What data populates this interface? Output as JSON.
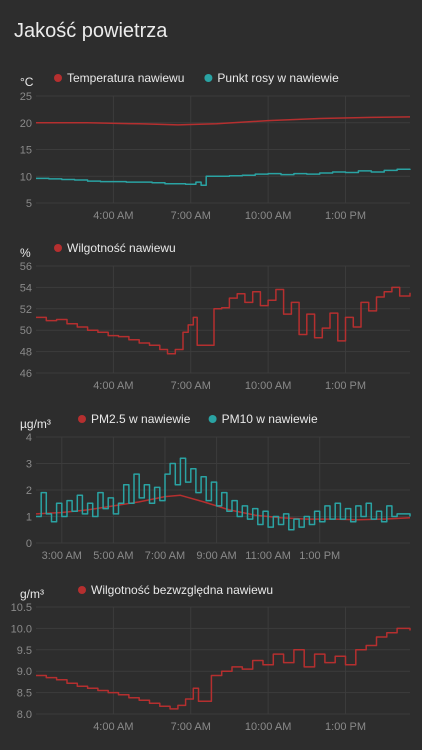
{
  "card": {
    "title": "Jakość powietrza"
  },
  "colors": {
    "background": "#2d2d2d",
    "grid": "#3c3c3c",
    "tick_text": "#8a8a8a",
    "legend_text": "#e8e8e8",
    "red": "#b52f2f",
    "teal": "#2aa3a3"
  },
  "chart_data": [
    {
      "type": "line",
      "unit": "°C",
      "xlabel": "",
      "ylabel": "°C",
      "ylim": [
        5,
        25
      ],
      "yticks": [
        5,
        10,
        15,
        20,
        25
      ],
      "xlim": [
        0,
        14.5
      ],
      "xticks": [
        {
          "x": 3,
          "label": "4:00 AM"
        },
        {
          "x": 6,
          "label": "7:00 AM"
        },
        {
          "x": 9,
          "label": "10:00 AM"
        },
        {
          "x": 12,
          "label": "1:00 PM"
        }
      ],
      "grid": true,
      "legend_position": "top",
      "series": [
        {
          "name": "Temperatura nawiewu",
          "color": "red",
          "step": false,
          "points": [
            [
              0,
              20.0
            ],
            [
              2,
              20.0
            ],
            [
              4,
              19.8
            ],
            [
              5.5,
              19.6
            ],
            [
              7,
              19.8
            ],
            [
              9,
              20.4
            ],
            [
              11,
              20.8
            ],
            [
              13,
              21.0
            ],
            [
              14.5,
              21.1
            ]
          ]
        },
        {
          "name": "Punkt rosy w nawiewie",
          "color": "teal",
          "step": true,
          "points": [
            [
              0,
              9.6
            ],
            [
              0.5,
              9.5
            ],
            [
              1,
              9.4
            ],
            [
              1.5,
              9.3
            ],
            [
              2,
              9.1
            ],
            [
              2.5,
              9.0
            ],
            [
              3,
              9.0
            ],
            [
              3.5,
              8.9
            ],
            [
              4,
              8.9
            ],
            [
              4.5,
              8.8
            ],
            [
              5,
              8.6
            ],
            [
              5.5,
              8.6
            ],
            [
              5.8,
              8.5
            ],
            [
              6.2,
              8.9
            ],
            [
              6.4,
              8.3
            ],
            [
              6.6,
              10.0
            ],
            [
              7,
              10.0
            ],
            [
              7.5,
              10.1
            ],
            [
              8,
              10.2
            ],
            [
              8.5,
              10.4
            ],
            [
              9,
              10.5
            ],
            [
              9.5,
              10.3
            ],
            [
              10,
              10.5
            ],
            [
              10.5,
              10.4
            ],
            [
              11,
              10.6
            ],
            [
              11.5,
              10.8
            ],
            [
              12,
              10.7
            ],
            [
              12.5,
              11.0
            ],
            [
              13,
              10.8
            ],
            [
              13.5,
              11.1
            ],
            [
              14,
              11.3
            ],
            [
              14.5,
              11.4
            ]
          ]
        }
      ]
    },
    {
      "type": "line",
      "unit": "%",
      "xlabel": "",
      "ylabel": "%",
      "ylim": [
        46,
        56
      ],
      "yticks": [
        46,
        48,
        50,
        52,
        54,
        56
      ],
      "xlim": [
        0,
        14.5
      ],
      "xticks": [
        {
          "x": 3,
          "label": "4:00 AM"
        },
        {
          "x": 6,
          "label": "7:00 AM"
        },
        {
          "x": 9,
          "label": "10:00 AM"
        },
        {
          "x": 12,
          "label": "1:00 PM"
        }
      ],
      "grid": true,
      "legend_position": "top",
      "series": [
        {
          "name": "Wilgotność nawiewu",
          "color": "red",
          "step": true,
          "points": [
            [
              0,
              51.2
            ],
            [
              0.4,
              50.9
            ],
            [
              0.8,
              51.0
            ],
            [
              1.2,
              50.6
            ],
            [
              1.6,
              50.3
            ],
            [
              2,
              50.0
            ],
            [
              2.4,
              49.8
            ],
            [
              2.8,
              49.5
            ],
            [
              3.2,
              49.4
            ],
            [
              3.6,
              49.1
            ],
            [
              4,
              48.8
            ],
            [
              4.4,
              48.6
            ],
            [
              4.8,
              48.2
            ],
            [
              5.1,
              47.8
            ],
            [
              5.4,
              48.2
            ],
            [
              5.7,
              49.8
            ],
            [
              5.9,
              50.5
            ],
            [
              6.1,
              51.2
            ],
            [
              6.25,
              48.6
            ],
            [
              6.8,
              48.6
            ],
            [
              6.9,
              52.0
            ],
            [
              7.2,
              52.1
            ],
            [
              7.5,
              53.0
            ],
            [
              7.8,
              53.4
            ],
            [
              8.1,
              52.6
            ],
            [
              8.4,
              53.6
            ],
            [
              8.7,
              52.3
            ],
            [
              9.0,
              52.8
            ],
            [
              9.3,
              53.8
            ],
            [
              9.6,
              51.5
            ],
            [
              9.9,
              52.6
            ],
            [
              10.2,
              49.6
            ],
            [
              10.5,
              51.5
            ],
            [
              10.8,
              49.3
            ],
            [
              11.1,
              50.2
            ],
            [
              11.4,
              51.6
            ],
            [
              11.7,
              49.0
            ],
            [
              12.0,
              51.2
            ],
            [
              12.3,
              50.3
            ],
            [
              12.6,
              52.6
            ],
            [
              12.9,
              51.8
            ],
            [
              13.2,
              53.1
            ],
            [
              13.5,
              53.6
            ],
            [
              13.8,
              54.0
            ],
            [
              14.1,
              53.2
            ],
            [
              14.5,
              53.5
            ]
          ]
        }
      ]
    },
    {
      "type": "line",
      "unit": "µg/m³",
      "xlabel": "",
      "ylabel": "µg/m³",
      "ylim": [
        0,
        4
      ],
      "yticks": [
        0,
        1,
        2,
        3,
        4
      ],
      "xlim": [
        0,
        14.5
      ],
      "xticks": [
        {
          "x": 1,
          "label": "3:00 AM"
        },
        {
          "x": 3,
          "label": "5:00 AM"
        },
        {
          "x": 5,
          "label": "7:00 AM"
        },
        {
          "x": 7,
          "label": "9:00 AM"
        },
        {
          "x": 9,
          "label": "11:00 AM"
        },
        {
          "x": 11,
          "label": "1:00 PM"
        }
      ],
      "grid": true,
      "legend_position": "top",
      "series": [
        {
          "name": "PM2.5 w nawiewie",
          "color": "red",
          "step": false,
          "points": [
            [
              0,
              1.1
            ],
            [
              1,
              1.15
            ],
            [
              2,
              1.25
            ],
            [
              3,
              1.4
            ],
            [
              4,
              1.55
            ],
            [
              5,
              1.75
            ],
            [
              5.6,
              1.8
            ],
            [
              6.5,
              1.55
            ],
            [
              7.5,
              1.25
            ],
            [
              8.5,
              1.05
            ],
            [
              9.5,
              0.95
            ],
            [
              10.5,
              0.9
            ],
            [
              11.5,
              0.9
            ],
            [
              12.5,
              0.88
            ],
            [
              13.5,
              0.9
            ],
            [
              14.5,
              0.95
            ]
          ]
        },
        {
          "name": "PM10 w nawiewie",
          "color": "teal",
          "step": true,
          "points": [
            [
              0,
              1.0
            ],
            [
              0.2,
              1.9
            ],
            [
              0.4,
              1.1
            ],
            [
              0.6,
              0.8
            ],
            [
              0.8,
              1.5
            ],
            [
              1.0,
              1.0
            ],
            [
              1.2,
              1.6
            ],
            [
              1.4,
              1.2
            ],
            [
              1.6,
              1.8
            ],
            [
              1.8,
              1.1
            ],
            [
              2.0,
              1.5
            ],
            [
              2.2,
              1.0
            ],
            [
              2.4,
              1.9
            ],
            [
              2.6,
              1.3
            ],
            [
              2.8,
              1.7
            ],
            [
              3.0,
              1.1
            ],
            [
              3.2,
              1.5
            ],
            [
              3.4,
              2.2
            ],
            [
              3.6,
              1.5
            ],
            [
              3.8,
              2.6
            ],
            [
              4.0,
              1.7
            ],
            [
              4.2,
              2.2
            ],
            [
              4.4,
              1.5
            ],
            [
              4.6,
              2.1
            ],
            [
              4.8,
              1.6
            ],
            [
              5.0,
              2.6
            ],
            [
              5.2,
              3.0
            ],
            [
              5.4,
              2.2
            ],
            [
              5.6,
              3.2
            ],
            [
              5.8,
              2.3
            ],
            [
              6.0,
              2.8
            ],
            [
              6.2,
              1.9
            ],
            [
              6.4,
              2.5
            ],
            [
              6.6,
              1.6
            ],
            [
              6.8,
              2.3
            ],
            [
              7.0,
              1.4
            ],
            [
              7.2,
              1.9
            ],
            [
              7.4,
              1.2
            ],
            [
              7.6,
              1.6
            ],
            [
              7.8,
              1.0
            ],
            [
              8.0,
              1.4
            ],
            [
              8.2,
              0.9
            ],
            [
              8.4,
              1.3
            ],
            [
              8.6,
              0.7
            ],
            [
              8.8,
              1.2
            ],
            [
              9.0,
              0.6
            ],
            [
              9.2,
              1.0
            ],
            [
              9.4,
              0.7
            ],
            [
              9.6,
              1.1
            ],
            [
              9.8,
              0.5
            ],
            [
              10.0,
              0.9
            ],
            [
              10.2,
              0.6
            ],
            [
              10.4,
              1.0
            ],
            [
              10.6,
              0.7
            ],
            [
              10.8,
              1.2
            ],
            [
              11.0,
              0.8
            ],
            [
              11.2,
              1.4
            ],
            [
              11.4,
              0.9
            ],
            [
              11.6,
              1.5
            ],
            [
              11.8,
              0.9
            ],
            [
              12.0,
              1.3
            ],
            [
              12.2,
              0.8
            ],
            [
              12.4,
              1.4
            ],
            [
              12.6,
              1.0
            ],
            [
              12.8,
              1.5
            ],
            [
              13.0,
              0.9
            ],
            [
              13.2,
              1.2
            ],
            [
              13.4,
              0.8
            ],
            [
              13.6,
              1.4
            ],
            [
              13.8,
              1.0
            ],
            [
              14.0,
              1.1
            ],
            [
              14.5,
              1.0
            ]
          ]
        }
      ]
    },
    {
      "type": "line",
      "unit": "g/m³",
      "xlabel": "",
      "ylabel": "g/m³",
      "ylim": [
        8.0,
        10.5
      ],
      "yticks": [
        8.0,
        8.5,
        9.0,
        9.5,
        10.0,
        10.5
      ],
      "xlim": [
        0,
        14.5
      ],
      "xticks": [
        {
          "x": 3,
          "label": "4:00 AM"
        },
        {
          "x": 6,
          "label": "7:00 AM"
        },
        {
          "x": 9,
          "label": "10:00 AM"
        },
        {
          "x": 12,
          "label": "1:00 PM"
        }
      ],
      "grid": true,
      "legend_position": "top",
      "series": [
        {
          "name": "Wilgotność bezwzględna nawiewu",
          "color": "red",
          "step": true,
          "points": [
            [
              0,
              8.9
            ],
            [
              0.4,
              8.85
            ],
            [
              0.8,
              8.8
            ],
            [
              1.2,
              8.72
            ],
            [
              1.6,
              8.65
            ],
            [
              2,
              8.6
            ],
            [
              2.4,
              8.55
            ],
            [
              2.8,
              8.5
            ],
            [
              3.2,
              8.45
            ],
            [
              3.6,
              8.38
            ],
            [
              4,
              8.32
            ],
            [
              4.4,
              8.25
            ],
            [
              4.8,
              8.18
            ],
            [
              5.2,
              8.12
            ],
            [
              5.5,
              8.2
            ],
            [
              5.8,
              8.35
            ],
            [
              6.1,
              8.6
            ],
            [
              6.3,
              8.3
            ],
            [
              6.7,
              8.3
            ],
            [
              6.8,
              8.9
            ],
            [
              7.2,
              9.0
            ],
            [
              7.6,
              9.1
            ],
            [
              8.0,
              9.05
            ],
            [
              8.4,
              9.25
            ],
            [
              8.8,
              9.15
            ],
            [
              9.2,
              9.4
            ],
            [
              9.6,
              9.2
            ],
            [
              10.0,
              9.5
            ],
            [
              10.4,
              9.1
            ],
            [
              10.8,
              9.4
            ],
            [
              11.2,
              9.2
            ],
            [
              11.6,
              9.35
            ],
            [
              12.0,
              9.15
            ],
            [
              12.4,
              9.5
            ],
            [
              12.8,
              9.6
            ],
            [
              13.2,
              9.8
            ],
            [
              13.6,
              9.9
            ],
            [
              14.0,
              10.0
            ],
            [
              14.5,
              9.95
            ]
          ]
        }
      ]
    }
  ]
}
